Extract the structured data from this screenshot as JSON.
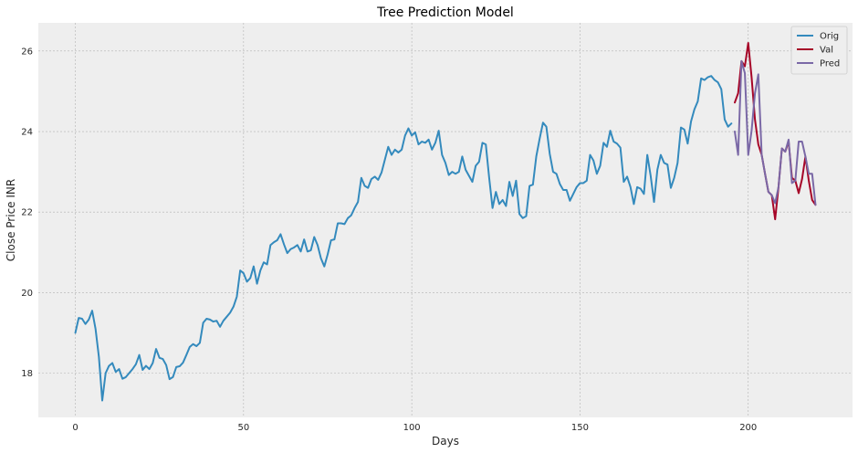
{
  "chart_data": {
    "type": "line",
    "title": "Tree Prediction Model",
    "xlabel": "Days",
    "ylabel": "Close Price INR",
    "xlim": [
      -11,
      231
    ],
    "ylim": [
      16.9,
      26.7
    ],
    "xticks": [
      0,
      50,
      100,
      150,
      200
    ],
    "yticks": [
      18,
      20,
      22,
      24,
      26
    ],
    "grid": true,
    "legend_position": "top-right",
    "background": "#eeeeee",
    "series": [
      {
        "name": "Orig",
        "color": "#348abd",
        "x_start": 0,
        "values": [
          19.0,
          19.37,
          19.35,
          19.22,
          19.33,
          19.55,
          19.1,
          18.4,
          17.32,
          18.0,
          18.18,
          18.25,
          18.03,
          18.1,
          17.86,
          17.9,
          18.0,
          18.1,
          18.22,
          18.45,
          18.08,
          18.18,
          18.1,
          18.25,
          18.6,
          18.38,
          18.35,
          18.2,
          17.85,
          17.9,
          18.15,
          18.17,
          18.26,
          18.45,
          18.65,
          18.72,
          18.67,
          18.75,
          19.25,
          19.35,
          19.33,
          19.28,
          19.3,
          19.15,
          19.3,
          19.4,
          19.5,
          19.65,
          19.9,
          20.55,
          20.48,
          20.27,
          20.36,
          20.65,
          20.22,
          20.55,
          20.75,
          20.7,
          21.18,
          21.25,
          21.3,
          21.45,
          21.2,
          20.98,
          21.08,
          21.12,
          21.18,
          21.02,
          21.32,
          21.02,
          21.05,
          21.38,
          21.18,
          20.85,
          20.65,
          20.95,
          21.3,
          21.32,
          21.72,
          21.72,
          21.7,
          21.85,
          21.92,
          22.1,
          22.25,
          22.85,
          22.65,
          22.6,
          22.82,
          22.88,
          22.8,
          22.98,
          23.3,
          23.62,
          23.42,
          23.55,
          23.48,
          23.55,
          23.9,
          24.08,
          23.9,
          23.98,
          23.68,
          23.75,
          23.72,
          23.8,
          23.55,
          23.72,
          24.02,
          23.42,
          23.22,
          22.92,
          23.0,
          22.95,
          23.0,
          23.38,
          23.05,
          22.9,
          22.75,
          23.15,
          23.25,
          23.72,
          23.68,
          22.85,
          22.1,
          22.5,
          22.2,
          22.3,
          22.15,
          22.75,
          22.4,
          22.78,
          21.95,
          21.85,
          21.9,
          22.65,
          22.68,
          23.38,
          23.82,
          24.22,
          24.12,
          23.45,
          23.0,
          22.95,
          22.7,
          22.55,
          22.55,
          22.28,
          22.45,
          22.62,
          22.72,
          22.72,
          22.78,
          23.42,
          23.28,
          22.95,
          23.15,
          23.72,
          23.62,
          24.02,
          23.75,
          23.7,
          23.6,
          22.75,
          22.88,
          22.62,
          22.2,
          22.62,
          22.58,
          22.45,
          23.42,
          22.9,
          22.25,
          23.05,
          23.42,
          23.22,
          23.18,
          22.6,
          22.85,
          23.22,
          24.1,
          24.05,
          23.7,
          24.25,
          24.55,
          24.75,
          25.32,
          25.28,
          25.35,
          25.38,
          25.28,
          25.22,
          25.05,
          24.3,
          24.12,
          24.2
        ]
      },
      {
        "name": "Val",
        "color": "#a60628",
        "x_start": 196,
        "values": [
          24.72,
          24.95,
          25.75,
          25.62,
          26.2,
          25.35,
          24.3,
          23.68,
          23.42,
          22.95,
          22.5,
          22.42,
          21.82,
          22.62,
          23.58,
          23.5,
          23.75,
          22.85,
          22.78,
          22.47,
          22.82,
          23.38,
          22.78,
          22.3,
          22.18
        ]
      },
      {
        "name": "Pred",
        "color": "#7a68a6",
        "x_start": 196,
        "values": [
          24.0,
          23.42,
          25.75,
          25.45,
          23.42,
          24.02,
          24.95,
          25.42,
          23.42,
          22.95,
          22.5,
          22.42,
          22.22,
          22.62,
          23.58,
          23.5,
          23.8,
          22.72,
          22.78,
          23.75,
          23.75,
          23.38,
          22.95,
          22.95,
          22.18
        ]
      }
    ]
  }
}
